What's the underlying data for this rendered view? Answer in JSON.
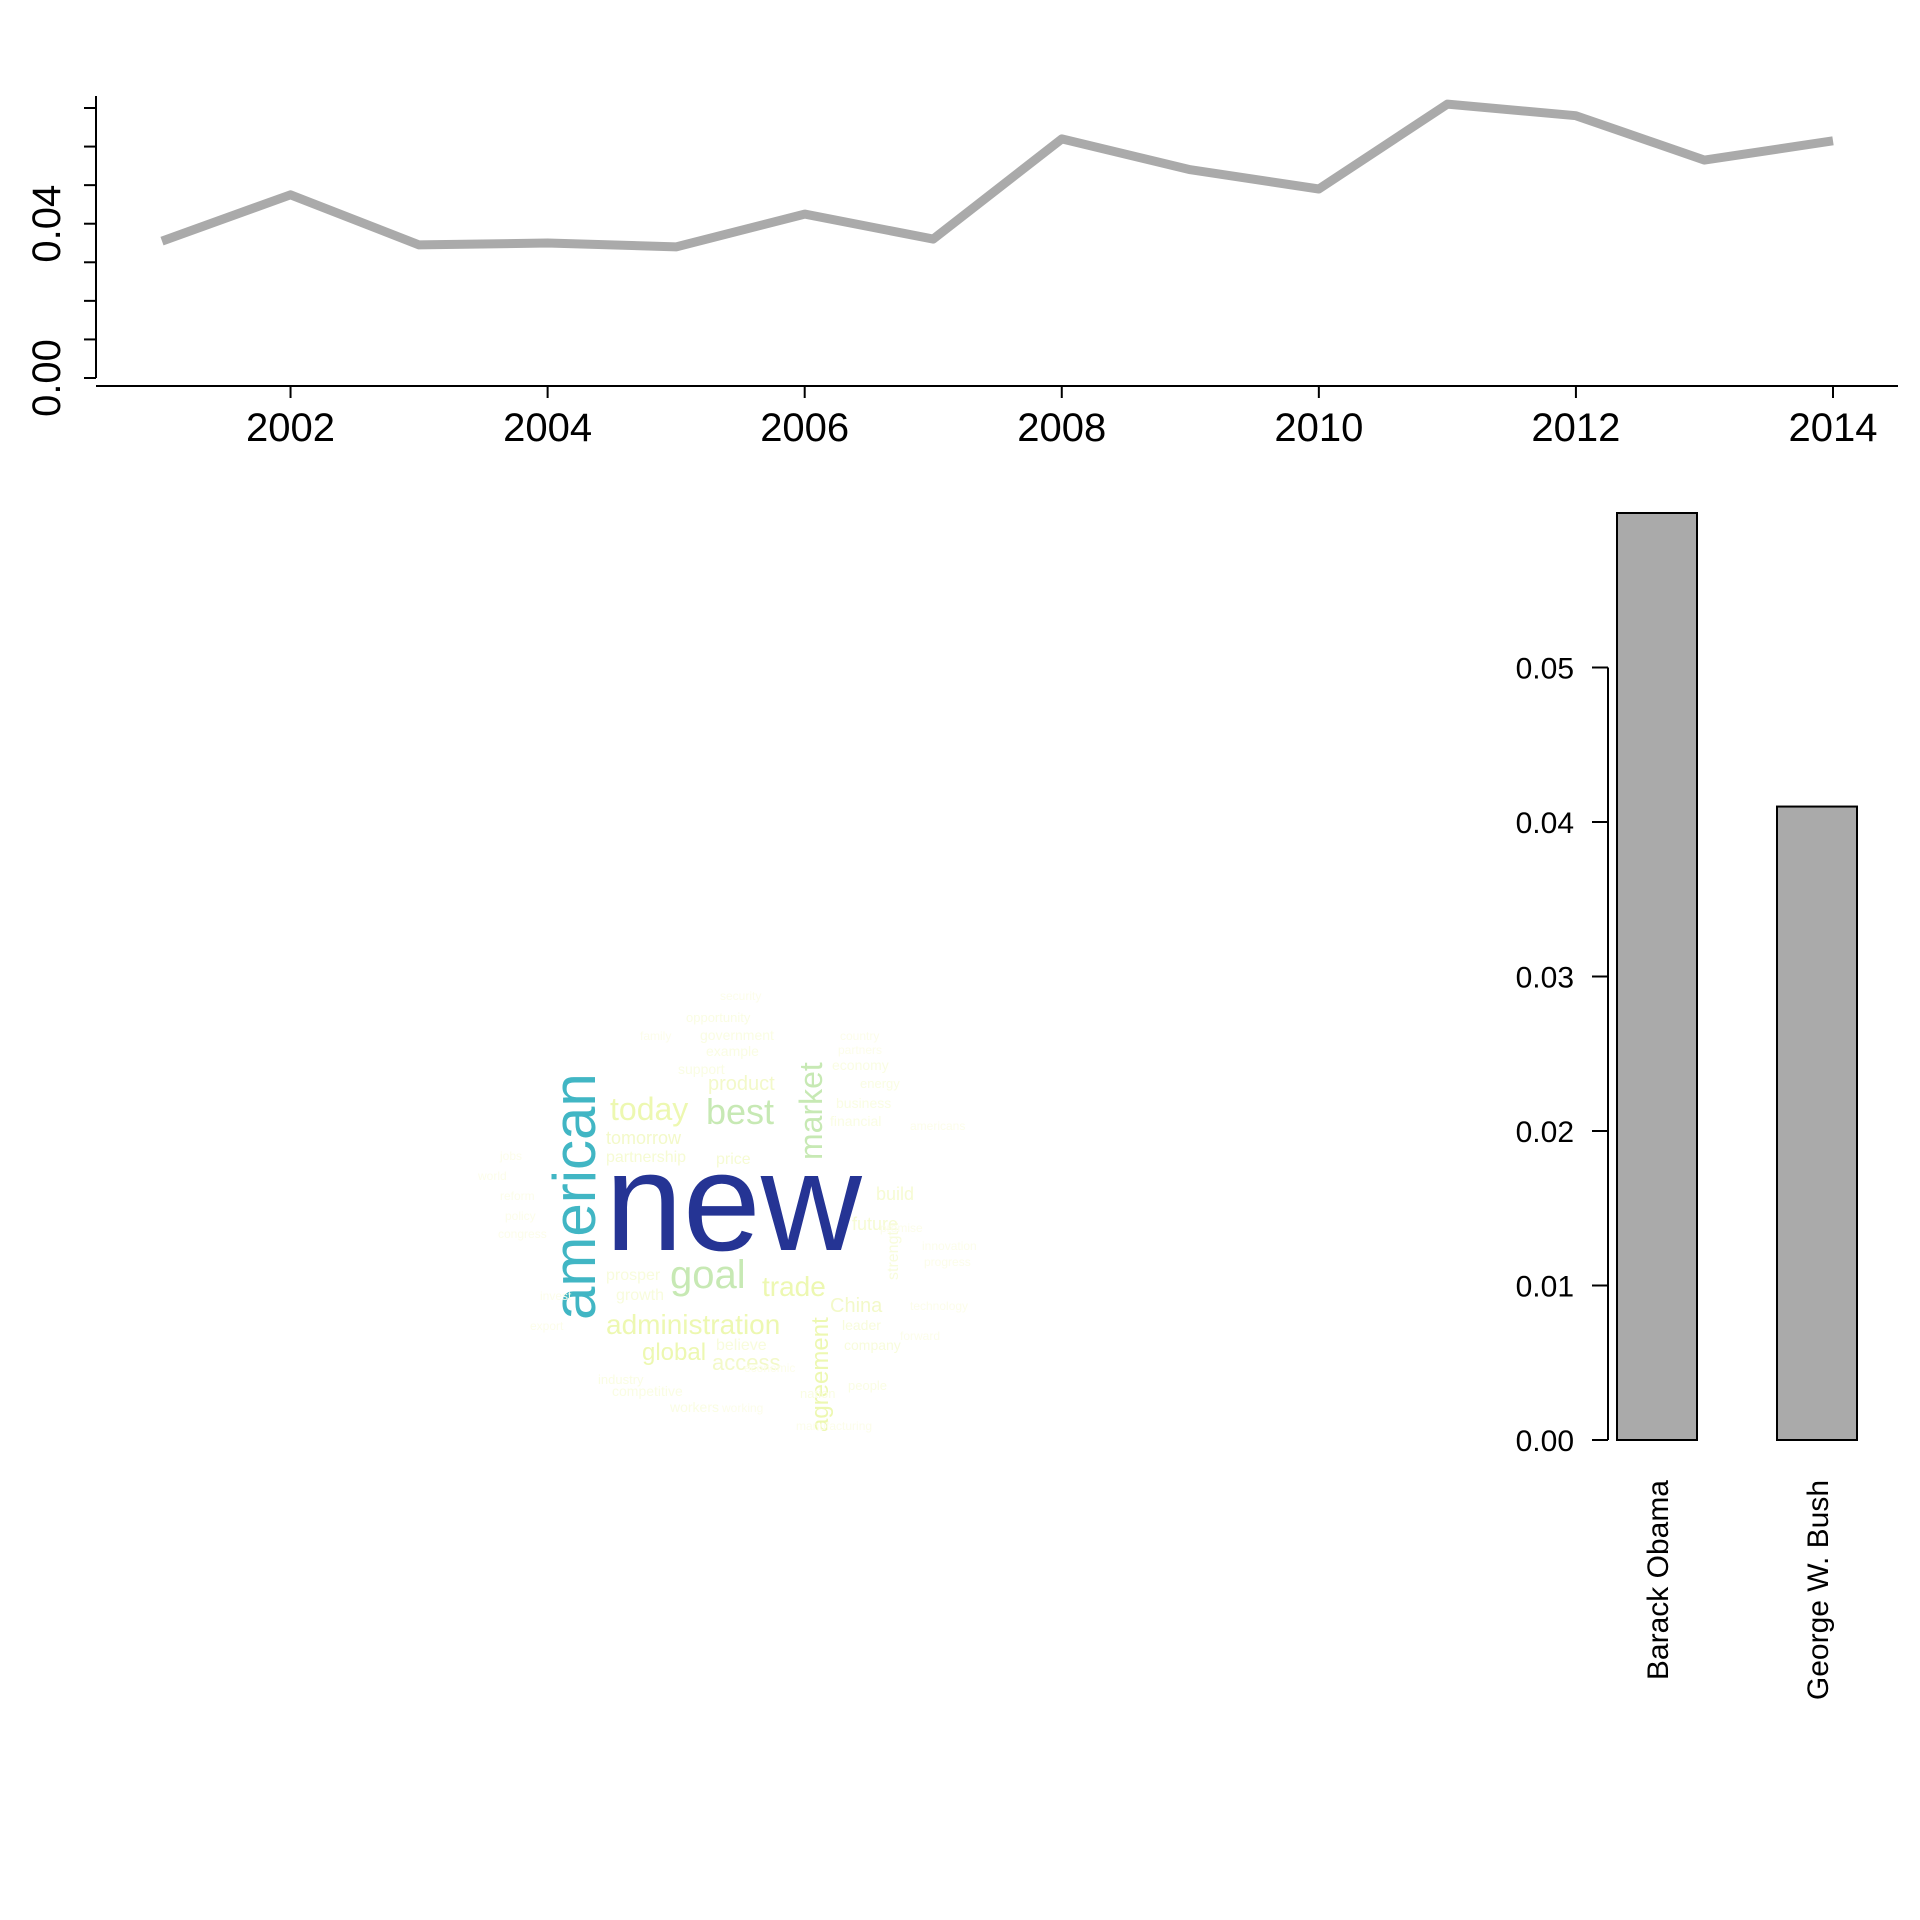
{
  "chart_data": [
    {
      "type": "line",
      "title": "",
      "xlabel": "",
      "ylabel": "",
      "x": [
        2001,
        2002,
        2003,
        2004,
        2005,
        2006,
        2007,
        2008,
        2009,
        2010,
        2011,
        2012,
        2013,
        2014
      ],
      "values": [
        0.0355,
        0.0475,
        0.0345,
        0.035,
        0.034,
        0.0425,
        0.036,
        0.062,
        0.054,
        0.049,
        0.071,
        0.068,
        0.0565,
        0.0615
      ],
      "xlim": [
        2001,
        2014
      ],
      "ylim": [
        0.0,
        0.07
      ],
      "x_ticks": [
        2002,
        2004,
        2006,
        2008,
        2010,
        2012,
        2014
      ],
      "x_tick_labels": [
        "2002",
        "2004",
        "2006",
        "2008",
        "2010",
        "2012",
        "2014"
      ],
      "y_ticks": [
        0.0,
        0.01,
        0.02,
        0.03,
        0.04,
        0.05,
        0.06,
        0.07
      ],
      "y_tick_labels": [
        "0.00",
        "0.04"
      ],
      "y_tick_label_values": [
        0.0,
        0.04
      ],
      "line_color": "#aaaaaa",
      "grid": false
    },
    {
      "type": "bar",
      "title": "",
      "xlabel": "",
      "ylabel": "",
      "categories": [
        "Barack Obama",
        "George W. Bush"
      ],
      "values": [
        0.06,
        0.041
      ],
      "ylim": [
        0.0,
        0.06
      ],
      "y_ticks": [
        0.0,
        0.01,
        0.02,
        0.03,
        0.04,
        0.05
      ],
      "y_tick_labels": [
        "0.00",
        "0.01",
        "0.02",
        "0.03",
        "0.04",
        "0.05"
      ],
      "bar_color": "#aaaaaa",
      "grid": false
    },
    {
      "type": "wordcloud",
      "words": [
        {
          "text": "new",
          "weight": 1.0,
          "color": "#253494"
        },
        {
          "text": "american",
          "weight": 0.62,
          "color": "#41b6c4"
        },
        {
          "text": "goal",
          "weight": 0.3,
          "color": "#c7e9b4"
        },
        {
          "text": "best",
          "weight": 0.28,
          "color": "#c7e9b4"
        },
        {
          "text": "market",
          "weight": 0.27,
          "color": "#c7e9b4"
        },
        {
          "text": "today",
          "weight": 0.24,
          "color": "#edf8b1"
        },
        {
          "text": "administration",
          "weight": 0.22,
          "color": "#edf8b1"
        },
        {
          "text": "trade",
          "weight": 0.22,
          "color": "#edf8b1"
        },
        {
          "text": "agreement",
          "weight": 0.2,
          "color": "#edf8b1"
        },
        {
          "text": "global",
          "weight": 0.18,
          "color": "#edf8b1"
        },
        {
          "text": "access",
          "weight": 0.17,
          "color": "#f3f9c9"
        },
        {
          "text": "China",
          "weight": 0.16,
          "color": "#f3f9c9"
        },
        {
          "text": "tomorrow",
          "weight": 0.15,
          "color": "#f3f9c9"
        },
        {
          "text": "product",
          "weight": 0.15,
          "color": "#f3f9c9"
        },
        {
          "text": "partnership",
          "weight": 0.14,
          "color": "#f6fbd3"
        },
        {
          "text": "price",
          "weight": 0.14,
          "color": "#f6fbd3"
        },
        {
          "text": "build",
          "weight": 0.13,
          "color": "#f6fbd3"
        },
        {
          "text": "future",
          "weight": 0.13,
          "color": "#f6fbd3"
        },
        {
          "text": "prosper",
          "weight": 0.12,
          "color": "#f8fcdc"
        },
        {
          "text": "strength",
          "weight": 0.12,
          "color": "#f8fcdc"
        },
        {
          "text": "growth",
          "weight": 0.12,
          "color": "#f8fcdc"
        },
        {
          "text": "believe",
          "weight": 0.11,
          "color": "#f8fcdc"
        },
        {
          "text": "leader",
          "weight": 0.11,
          "color": "#f8fcdc"
        },
        {
          "text": "company",
          "weight": 0.11,
          "color": "#f8fcdc"
        },
        {
          "text": "support",
          "weight": 0.1,
          "color": "#fafde3"
        },
        {
          "text": "example",
          "weight": 0.1,
          "color": "#fafde3"
        },
        {
          "text": "financial",
          "weight": 0.1,
          "color": "#fafde3"
        },
        {
          "text": "business",
          "weight": 0.1,
          "color": "#fafde3"
        },
        {
          "text": "government",
          "weight": 0.1,
          "color": "#fafde3"
        },
        {
          "text": "economy",
          "weight": 0.1,
          "color": "#fafde3"
        },
        {
          "text": "opportunity",
          "weight": 0.09,
          "color": "#fafde3"
        },
        {
          "text": "competitive",
          "weight": 0.09,
          "color": "#fafde3"
        },
        {
          "text": "workers",
          "weight": 0.09,
          "color": "#fafde3"
        },
        {
          "text": "industry",
          "weight": 0.09,
          "color": "#fafde3"
        },
        {
          "text": "people",
          "weight": 0.09,
          "color": "#fafde3"
        },
        {
          "text": "energy",
          "weight": 0.09,
          "color": "#fafde3"
        },
        {
          "text": "nation",
          "weight": 0.09,
          "color": "#fafde3"
        },
        {
          "text": "export",
          "weight": 0.08,
          "color": "#fcfdea"
        },
        {
          "text": "invest",
          "weight": 0.08,
          "color": "#fcfdea"
        },
        {
          "text": "jobs",
          "weight": 0.08,
          "color": "#fcfdea"
        },
        {
          "text": "world",
          "weight": 0.08,
          "color": "#fcfdea"
        },
        {
          "text": "reform",
          "weight": 0.08,
          "color": "#fcfdea"
        },
        {
          "text": "policy",
          "weight": 0.08,
          "color": "#fcfdea"
        },
        {
          "text": "security",
          "weight": 0.08,
          "color": "#fcfdea"
        },
        {
          "text": "americans",
          "weight": 0.08,
          "color": "#fcfdea"
        },
        {
          "text": "innovation",
          "weight": 0.08,
          "color": "#fcfdea"
        },
        {
          "text": "progress",
          "weight": 0.08,
          "color": "#fcfdea"
        },
        {
          "text": "promise",
          "weight": 0.08,
          "color": "#fcfdea"
        },
        {
          "text": "country",
          "weight": 0.08,
          "color": "#fcfdea"
        },
        {
          "text": "working",
          "weight": 0.08,
          "color": "#fcfdea"
        },
        {
          "text": "economic",
          "weight": 0.08,
          "color": "#fcfdea"
        },
        {
          "text": "manufacturing",
          "weight": 0.08,
          "color": "#fcfdea"
        },
        {
          "text": "technology",
          "weight": 0.08,
          "color": "#fcfdea"
        },
        {
          "text": "family",
          "weight": 0.08,
          "color": "#fcfdea"
        },
        {
          "text": "partners",
          "weight": 0.08,
          "color": "#fcfdea"
        },
        {
          "text": "congress",
          "weight": 0.08,
          "color": "#fcfdea"
        },
        {
          "text": "forward",
          "weight": 0.08,
          "color": "#fcfdea"
        }
      ]
    }
  ]
}
